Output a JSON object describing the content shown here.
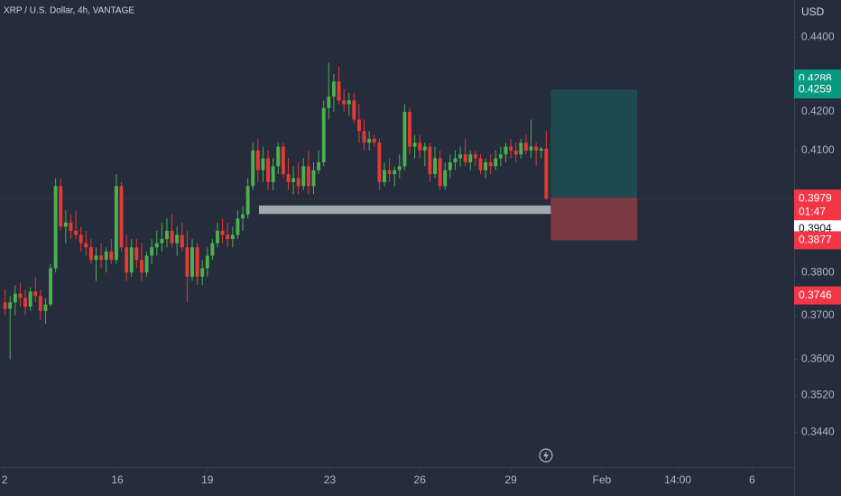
{
  "chart_data": {
    "type": "candlestick",
    "title": "XRP / U.S. Dollar, 4h, VANTAGE",
    "currency": "USD",
    "log_scale": true,
    "grid": false,
    "up_color": "#4caf50",
    "down_color": "#e53935",
    "xlim": [
      -1,
      156
    ],
    "ylim": [
      0.3366,
      0.4503
    ],
    "xticks": [
      {
        "value": -0.1,
        "label": "2"
      },
      {
        "value": 22.2,
        "label": "16"
      },
      {
        "value": 40,
        "label": "19"
      },
      {
        "value": 64.2,
        "label": "23"
      },
      {
        "value": 82,
        "label": "26"
      },
      {
        "value": 100,
        "label": "29"
      },
      {
        "value": 118,
        "label": "Feb"
      },
      {
        "value": 133,
        "label": "14:00"
      },
      {
        "value": 147.7,
        "label": "6"
      }
    ],
    "yticks": [
      {
        "value": 0.44,
        "label": "0.4400"
      },
      {
        "value": 0.42,
        "label": "0.4200"
      },
      {
        "value": 0.41,
        "label": "0.4100"
      },
      {
        "value": 0.38,
        "label": "0.3800"
      },
      {
        "value": 0.37,
        "label": "0.3700"
      },
      {
        "value": 0.36,
        "label": "0.3600"
      },
      {
        "value": 0.352,
        "label": "0.3520"
      },
      {
        "value": 0.344,
        "label": "0.3440"
      }
    ],
    "open": [
      0.373,
      0.3715,
      0.373,
      0.375,
      0.374,
      0.372,
      0.3755,
      0.3745,
      0.371,
      0.3725,
      0.381,
      0.401,
      0.391,
      0.392,
      0.39,
      0.389,
      0.387,
      0.386,
      0.383,
      0.384,
      0.383,
      0.385,
      0.383,
      0.401,
      0.386,
      0.38,
      0.386,
      0.383,
      0.38,
      0.384,
      0.386,
      0.387,
      0.388,
      0.39,
      0.387,
      0.389,
      0.386,
      0.379,
      0.386,
      0.379,
      0.381,
      0.384,
      0.387,
      0.39,
      0.389,
      0.388,
      0.389,
      0.393,
      0.394,
      0.401,
      0.41,
      0.405,
      0.408,
      0.402,
      0.406,
      0.411,
      0.404,
      0.402,
      0.403,
      0.401,
      0.406,
      0.401,
      0.405,
      0.407,
      0.421,
      0.424,
      0.428,
      0.423,
      0.422,
      0.423,
      0.418,
      0.415,
      0.412,
      0.413,
      0.412,
      0.402,
      0.405,
      0.404,
      0.405,
      0.406,
      0.42,
      0.411,
      0.412,
      0.41,
      0.411,
      0.404,
      0.408,
      0.401,
      0.405,
      0.407,
      0.408,
      0.409,
      0.407,
      0.409,
      0.408,
      0.405,
      0.407,
      0.406,
      0.408,
      0.409,
      0.411,
      0.41,
      0.409,
      0.412,
      0.41,
      0.411,
      0.41,
      0.4105
    ],
    "high": [
      0.376,
      0.3745,
      0.377,
      0.3775,
      0.376,
      0.3765,
      0.379,
      0.376,
      0.374,
      0.382,
      0.403,
      0.403,
      0.395,
      0.394,
      0.395,
      0.391,
      0.39,
      0.388,
      0.386,
      0.387,
      0.386,
      0.388,
      0.404,
      0.402,
      0.389,
      0.388,
      0.388,
      0.387,
      0.385,
      0.388,
      0.39,
      0.392,
      0.393,
      0.394,
      0.391,
      0.392,
      0.39,
      0.388,
      0.387,
      0.383,
      0.386,
      0.388,
      0.392,
      0.393,
      0.392,
      0.391,
      0.395,
      0.396,
      0.403,
      0.412,
      0.413,
      0.411,
      0.41,
      0.408,
      0.412,
      0.412,
      0.408,
      0.406,
      0.407,
      0.408,
      0.41,
      0.407,
      0.41,
      0.423,
      0.433,
      0.43,
      0.432,
      0.426,
      0.425,
      0.425,
      0.422,
      0.418,
      0.415,
      0.414,
      0.413,
      0.407,
      0.408,
      0.406,
      0.409,
      0.422,
      0.421,
      0.414,
      0.414,
      0.412,
      0.412,
      0.411,
      0.41,
      0.407,
      0.409,
      0.41,
      0.411,
      0.413,
      0.41,
      0.41,
      0.409,
      0.408,
      0.409,
      0.41,
      0.411,
      0.412,
      0.413,
      0.412,
      0.413,
      0.414,
      0.418,
      0.412,
      0.411,
      0.415
    ],
    "low": [
      0.37,
      0.36,
      0.37,
      0.372,
      0.37,
      0.371,
      0.373,
      0.369,
      0.368,
      0.372,
      0.38,
      0.39,
      0.387,
      0.388,
      0.388,
      0.385,
      0.384,
      0.382,
      0.378,
      0.381,
      0.38,
      0.382,
      0.382,
      0.385,
      0.378,
      0.379,
      0.381,
      0.378,
      0.379,
      0.382,
      0.384,
      0.385,
      0.386,
      0.386,
      0.384,
      0.385,
      0.373,
      0.378,
      0.377,
      0.377,
      0.379,
      0.383,
      0.386,
      0.387,
      0.386,
      0.386,
      0.388,
      0.39,
      0.393,
      0.4,
      0.402,
      0.402,
      0.4,
      0.4,
      0.404,
      0.403,
      0.4,
      0.399,
      0.399,
      0.4,
      0.399,
      0.399,
      0.404,
      0.406,
      0.418,
      0.42,
      0.422,
      0.42,
      0.419,
      0.417,
      0.412,
      0.41,
      0.41,
      0.411,
      0.4,
      0.401,
      0.402,
      0.401,
      0.403,
      0.405,
      0.409,
      0.408,
      0.408,
      0.406,
      0.402,
      0.403,
      0.4,
      0.4,
      0.403,
      0.405,
      0.406,
      0.406,
      0.405,
      0.406,
      0.404,
      0.403,
      0.404,
      0.405,
      0.406,
      0.407,
      0.408,
      0.407,
      0.408,
      0.409,
      0.408,
      0.406,
      0.408,
      0.3975
    ],
    "close": [
      0.3715,
      0.373,
      0.375,
      0.374,
      0.372,
      0.3755,
      0.3745,
      0.371,
      0.3725,
      0.381,
      0.401,
      0.391,
      0.392,
      0.39,
      0.389,
      0.387,
      0.386,
      0.383,
      0.384,
      0.383,
      0.385,
      0.383,
      0.401,
      0.386,
      0.38,
      0.386,
      0.383,
      0.38,
      0.384,
      0.386,
      0.387,
      0.388,
      0.39,
      0.387,
      0.389,
      0.386,
      0.379,
      0.386,
      0.379,
      0.381,
      0.384,
      0.387,
      0.39,
      0.389,
      0.388,
      0.389,
      0.393,
      0.394,
      0.401,
      0.41,
      0.405,
      0.408,
      0.402,
      0.406,
      0.411,
      0.404,
      0.402,
      0.403,
      0.401,
      0.406,
      0.401,
      0.405,
      0.407,
      0.421,
      0.424,
      0.428,
      0.423,
      0.422,
      0.423,
      0.418,
      0.415,
      0.412,
      0.413,
      0.412,
      0.402,
      0.405,
      0.404,
      0.405,
      0.406,
      0.42,
      0.411,
      0.412,
      0.41,
      0.411,
      0.404,
      0.408,
      0.401,
      0.405,
      0.407,
      0.408,
      0.409,
      0.407,
      0.409,
      0.408,
      0.405,
      0.407,
      0.406,
      0.408,
      0.409,
      0.411,
      0.41,
      0.409,
      0.412,
      0.41,
      0.411,
      0.41,
      0.4105,
      0.3979
    ],
    "zone": {
      "top": 0.3962,
      "bottom": 0.3941,
      "x_start": 50.2,
      "x_end": 107.9,
      "color": "#a3a7ae"
    },
    "position": {
      "target": 0.4259,
      "entry": 0.3981,
      "stop": 0.3877,
      "x_start": 107.9,
      "x_end": 125,
      "profit_color": "#1f4b50",
      "loss_color": "#7b3a42"
    },
    "price_labels": [
      {
        "value": 0.4288,
        "color": "#089981"
      },
      {
        "value": 0.4259,
        "color": "#089981"
      },
      {
        "value": 0.3904,
        "color": "#ffffff"
      },
      {
        "value": 0.3979,
        "color": "#f23645",
        "countdown": "01:47"
      },
      {
        "value": 0.3877,
        "color": "#f23645"
      },
      {
        "value": 0.3746,
        "color": "#f23645"
      }
    ]
  }
}
